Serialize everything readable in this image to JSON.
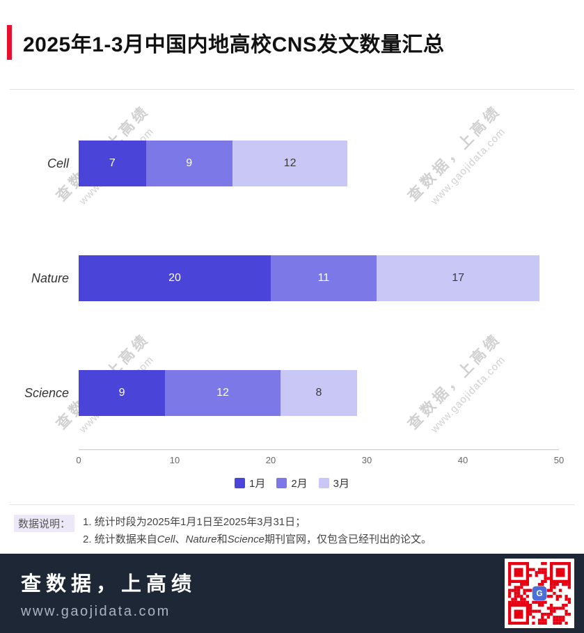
{
  "title": "2025年1-3月中国内地高校CNS发文数量汇总",
  "watermark": {
    "line1": "查数据，上高绩",
    "line2": "www.gaojidata.com"
  },
  "chart_data": {
    "type": "bar",
    "orientation": "horizontal",
    "stacked": true,
    "title": "2025年1-3月中国内地高校CNS发文数量汇总",
    "categories": [
      "Cell",
      "Nature",
      "Science"
    ],
    "series": [
      {
        "name": "1月",
        "color": "#4a44d9",
        "label_color": "#ffffff",
        "values": [
          7,
          20,
          9
        ]
      },
      {
        "name": "2月",
        "color": "#7d78e8",
        "label_color": "#ffffff",
        "values": [
          9,
          11,
          12
        ]
      },
      {
        "name": "3月",
        "color": "#c9c7f5",
        "label_color": "#3a3a3a",
        "values": [
          12,
          17,
          8
        ]
      }
    ],
    "totals": {
      "Cell": 28,
      "Nature": 48,
      "Science": 29
    },
    "xlim": [
      0,
      50
    ],
    "xticks": [
      0,
      10,
      20,
      30,
      40,
      50
    ],
    "grid": false,
    "legend_position": "bottom"
  },
  "notes": {
    "label": "数据说明：",
    "line1": "1. 统计时段为2025年1月1日至2025年3月31日；",
    "line2_parts": [
      {
        "text": "2. 统计数据来自"
      },
      {
        "text": "Cell",
        "italic": true
      },
      {
        "text": "、"
      },
      {
        "text": "Nature",
        "italic": true
      },
      {
        "text": "和"
      },
      {
        "text": "Science",
        "italic": true
      },
      {
        "text": "期刊官网，仅包含已经刊出的论文。"
      }
    ]
  },
  "footer": {
    "brand": "查数据，上高绩",
    "url": "www.gaojidata.com",
    "qr_color": "#e60012",
    "qr_icon_color": "#4a6fd8"
  },
  "colors": {
    "title_accent": "#e8112d",
    "footer_background": "#1d2735",
    "watermark": "#cccccc"
  }
}
